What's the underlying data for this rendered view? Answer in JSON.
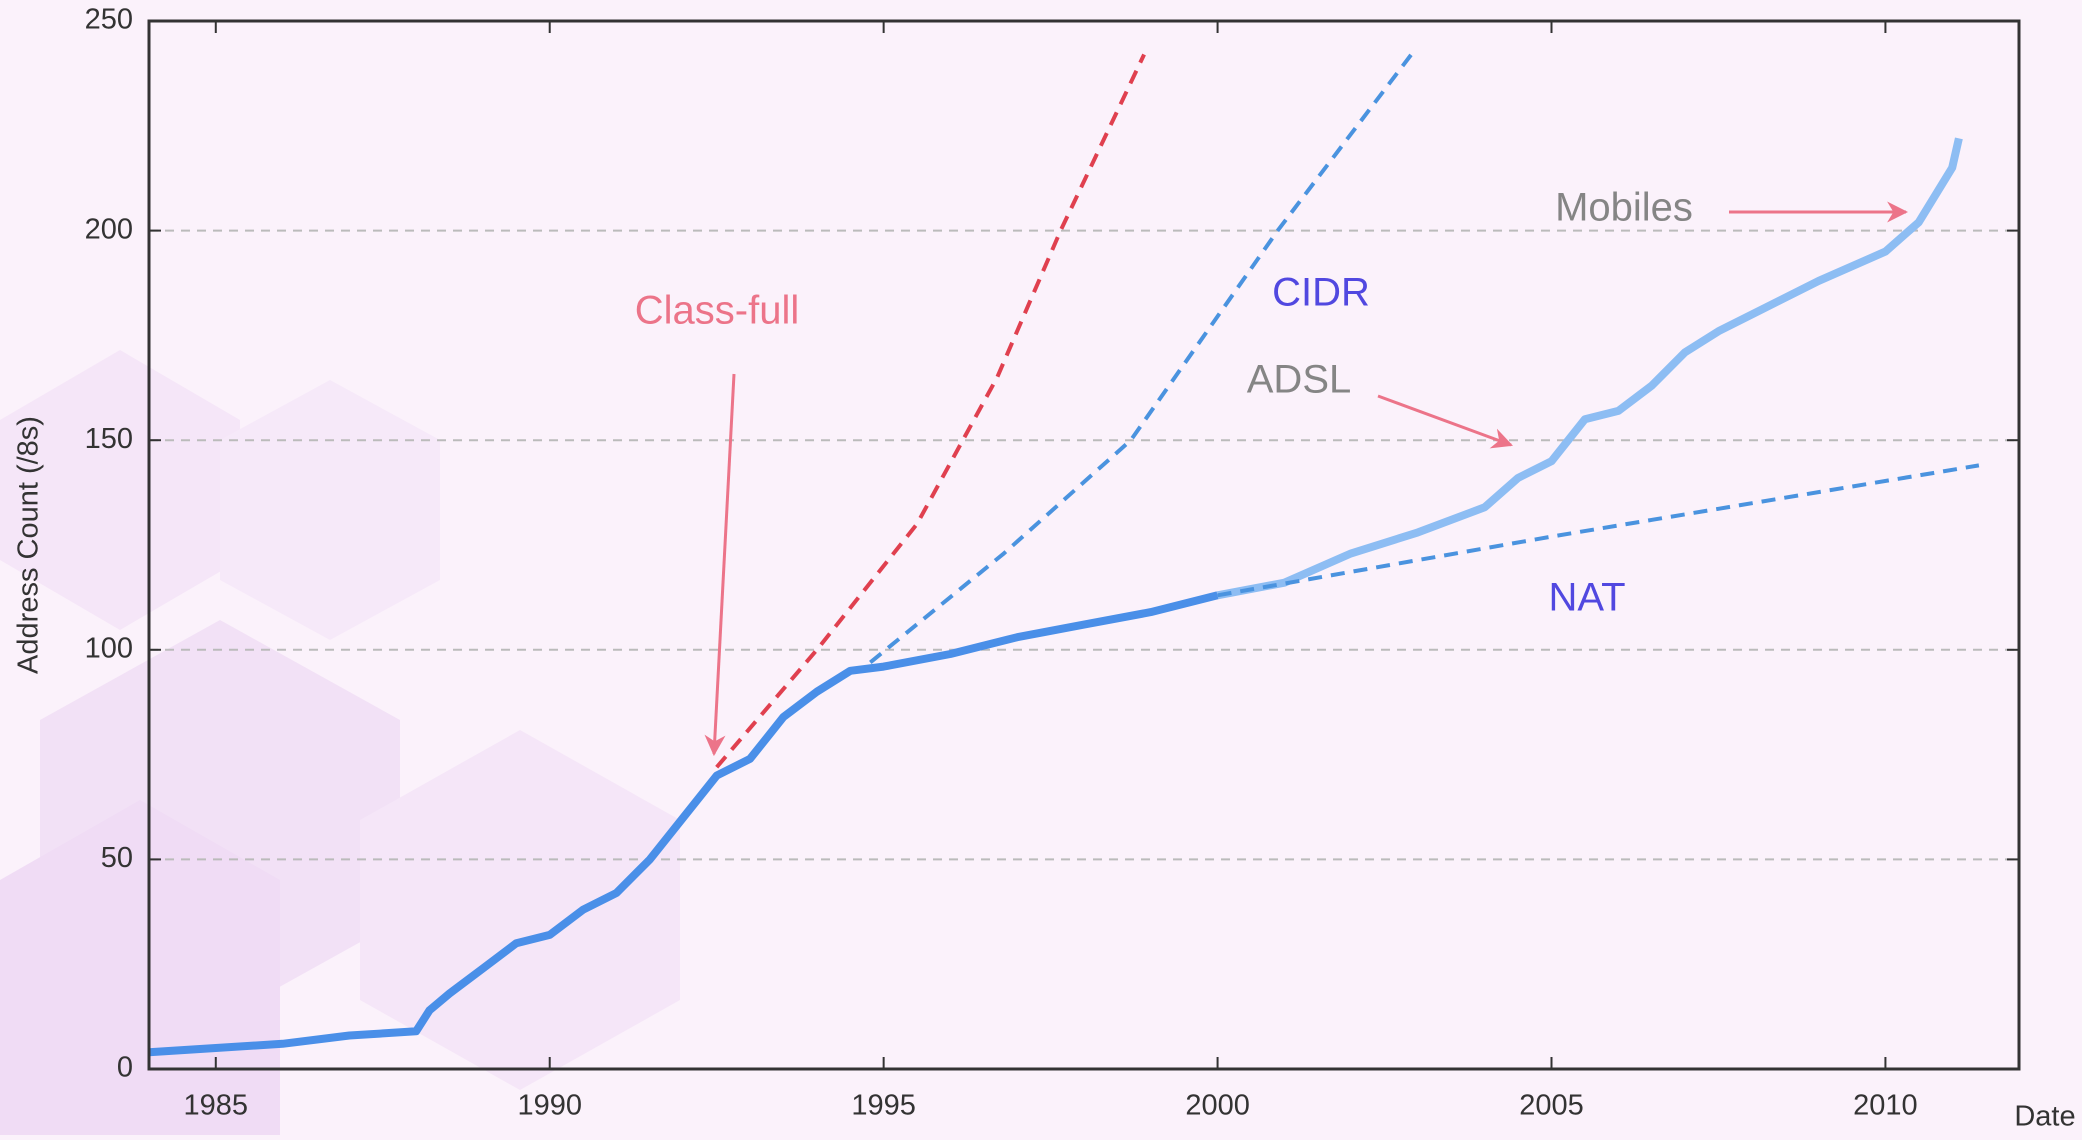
{
  "chart_data": {
    "type": "line",
    "y_label": "Address Count (/8s)",
    "x_label": "Date",
    "xlim": [
      1984,
      2012
    ],
    "xticks": [
      1985,
      1990,
      1995,
      2000,
      2005,
      2010
    ],
    "ylim": [
      0,
      250
    ],
    "yticks": [
      0,
      50,
      100,
      150,
      200,
      250
    ],
    "grid": true,
    "series": [
      {
        "color": "#4a8fe8",
        "dash": false,
        "x": [
          1984,
          1985,
          1986,
          1987,
          1988,
          1988.2,
          1988.5,
          1989,
          1989.5,
          1990,
          1990.5,
          1991,
          1991.5,
          1992,
          1992.5,
          1993,
          1993.5,
          1994,
          1994.5,
          1995,
          1996,
          1997,
          1998,
          1999,
          2000
        ],
        "values": [
          4,
          5,
          6,
          8,
          9,
          14,
          18,
          24,
          30,
          32,
          38,
          42,
          50,
          60,
          70,
          74,
          84,
          90,
          95,
          96,
          99,
          103,
          106,
          109,
          113
        ]
      },
      {
        "color": "#8dbdf3",
        "dash": false,
        "x": [
          2000,
          2001,
          2002,
          2003,
          2004,
          2004.5,
          2005,
          2005.5,
          2006,
          2006.5,
          2007,
          2007.5,
          2008,
          2009,
          2010,
          2010.5,
          2011,
          2011.1
        ],
        "values": [
          113,
          116,
          123,
          128,
          134,
          141,
          145,
          155,
          157,
          163,
          171,
          176,
          180,
          188,
          195,
          202,
          215,
          222
        ]
      },
      {
        "color": "#e0404f",
        "dash": true,
        "x": [
          1992.5,
          1994,
          1995.5,
          1996.7,
          1997.65,
          1998.9
        ],
        "values": [
          72,
          100,
          130,
          165,
          200,
          242
        ]
      },
      {
        "color": "#4a93df",
        "dash": true,
        "x": [
          1994.8,
          1996.8,
          1998.7,
          2000.9,
          2002.9
        ],
        "values": [
          97,
          123,
          150,
          200,
          242
        ]
      },
      {
        "color": "#4a93df",
        "dash": true,
        "x": [
          2000,
          2005,
          2011.4
        ],
        "values": [
          113,
          127,
          144
        ]
      }
    ],
    "annotations": [
      {
        "text": "Class-full",
        "color": "#ec7489"
      },
      {
        "text": "CIDR",
        "color": "#5148e0"
      },
      {
        "text": "ADSL",
        "color": "#858585"
      },
      {
        "text": "Mobiles",
        "color": "#858585"
      },
      {
        "text": "NAT",
        "color": "#5148e0"
      }
    ]
  }
}
